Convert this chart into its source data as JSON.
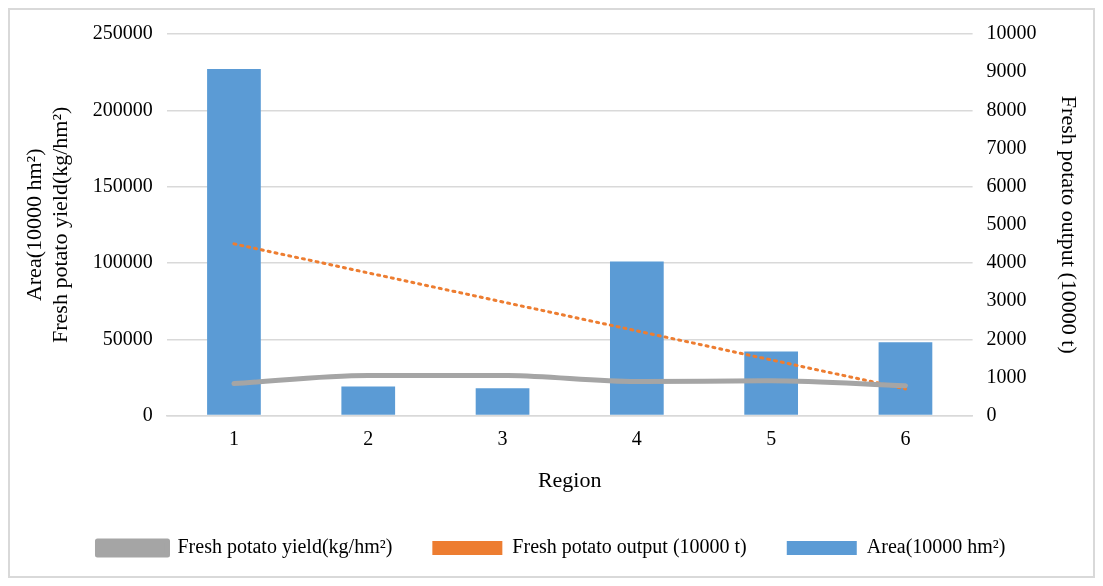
{
  "chart_data": {
    "type": "bar",
    "xlabel": "Region",
    "ylabel": "Area(10000 hm²)\nFresh potato yield(kg/hm²)",
    "y2label": "Fresh potato output (10000 t)",
    "categories": [
      "1",
      "2",
      "3",
      "4",
      "5",
      "6"
    ],
    "series": [
      {
        "name": "Fresh potato output (10000 t)",
        "color": "#ed7d31",
        "axis": "y2",
        "values": [
          null,
          null,
          null,
          null,
          null,
          null
        ]
      },
      {
        "name": "Area(10000 hm²)",
        "color": "#5b9bd5",
        "values": [
          227000,
          19000,
          18000,
          101000,
          42000,
          48000
        ]
      },
      {
        "name": "Fresh potato yield(kg/hm²)",
        "type": "line",
        "color": "#a5a5a5",
        "values": [
          21000,
          26300,
          26300,
          22300,
          22800,
          19600
        ]
      },
      {
        "type": "line",
        "color": "#ed7d31",
        "axis": "y2",
        "line_style": "dotted",
        "x": [
          "1",
          "6"
        ],
        "values": [
          4500,
          700
        ]
      }
    ],
    "ylim": [
      0,
      250000
    ],
    "yticks": [
      0,
      50000,
      100000,
      150000,
      200000,
      250000
    ],
    "y2lim": [
      0,
      10000
    ],
    "y2ticks": [
      0,
      1000,
      2000,
      3000,
      4000,
      5000,
      6000,
      7000,
      8000,
      9000,
      10000
    ],
    "grid": "y",
    "legend": "bottom",
    "marker": "none"
  }
}
